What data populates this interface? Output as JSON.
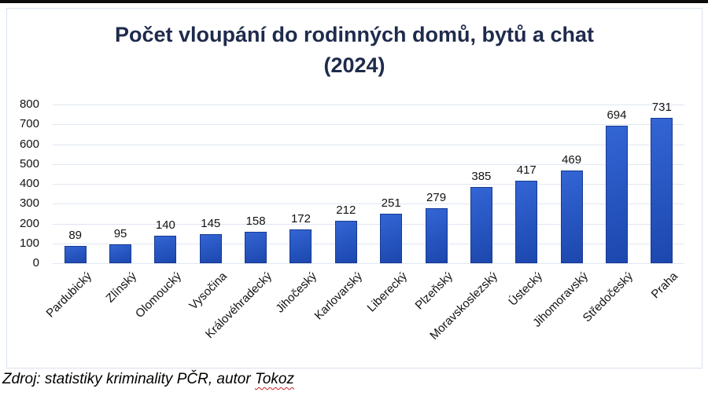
{
  "page": {
    "footer": {
      "prefix": "Zdroj: statistiky kriminality PČR, autor ",
      "highlight": "Tokoz"
    }
  },
  "chart_data": {
    "type": "bar",
    "title": "Počet vloupání do rodinných domů, bytů a chat (2024)",
    "title_lines": [
      "Počet vloupání do rodinných domů, bytů a chat",
      "(2024)"
    ],
    "categories": [
      "Pardubický",
      "Zlínský",
      "Olomoucký",
      "Vysočina",
      "Královéhradecký",
      "Jihočeský",
      "Karlovarský",
      "Liberecký",
      "Plzeňský",
      "Moravskoslezský",
      "Ústecký",
      "Jihomoravský",
      "Středočeský",
      "Praha"
    ],
    "values": [
      89,
      95,
      140,
      145,
      158,
      172,
      212,
      251,
      279,
      385,
      417,
      469,
      694,
      731
    ],
    "xlabel": "",
    "ylabel": "",
    "ylim": [
      0,
      800
    ],
    "yticks": [
      0,
      100,
      200,
      300,
      400,
      500,
      600,
      700,
      800
    ],
    "grid": true,
    "legend": false,
    "x_label_rotation_deg": 45,
    "data_labels": true
  },
  "colors": {
    "title": "#1f2b4c",
    "bar_fill_light": "#3365d4",
    "bar_fill_dark": "#1c47ae",
    "bar_border": "#173a92",
    "gridline": "#dfe7f1",
    "chart_border": "#d9e2ee",
    "top_strip": "#0b0b0b",
    "text": "#121212",
    "spellcheck_wavy": "#cc2222"
  }
}
